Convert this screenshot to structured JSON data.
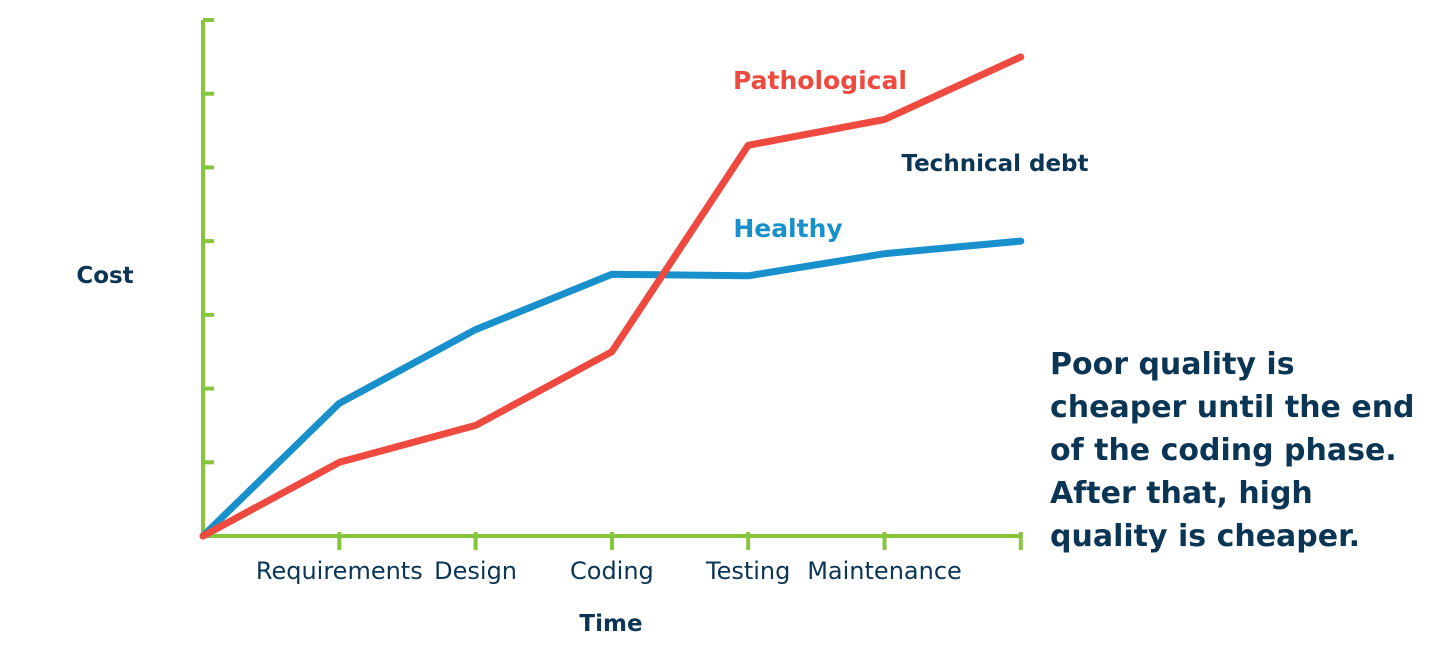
{
  "chart_data": {
    "type": "line",
    "categories": [
      "",
      "Requirements",
      "Design",
      "Coding",
      "Testing",
      "Maintenance",
      ""
    ],
    "series": [
      {
        "name": "Pathological",
        "color": "#ee4a40",
        "values": [
          0,
          1,
          1.5,
          2.5,
          5.3,
          5.65,
          6.5
        ]
      },
      {
        "name": "Healthy",
        "color": "#1890cc",
        "values": [
          0,
          1.8,
          2.8,
          3.55,
          3.53,
          3.83,
          4.0
        ]
      }
    ],
    "xlabel": "Time",
    "ylabel": "Cost",
    "ylim": [
      0,
      7
    ],
    "annotations": [
      "Technical debt"
    ],
    "axis_color": "#86c53c",
    "text_color": "#0b3555"
  },
  "note": {
    "lines": [
      "Poor quality is",
      "cheaper until the end",
      "of the coding phase.",
      "After that, high",
      "quality is cheaper."
    ]
  }
}
